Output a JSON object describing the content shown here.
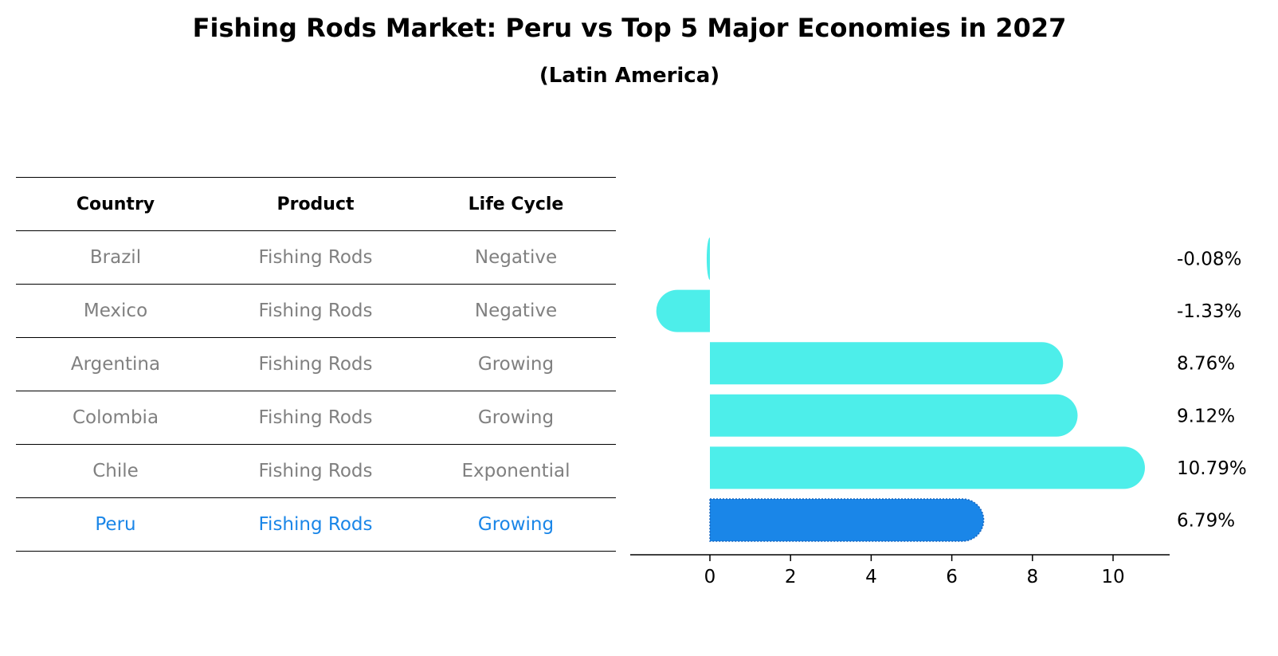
{
  "title": "Fishing Rods Market: Peru vs Top 5 Major Economies in 2027",
  "subtitle": "(Latin America)",
  "colors": {
    "bar": "#4DEEEA",
    "highlight": "#1A86E8",
    "muted": "#808080"
  },
  "table": {
    "headers": [
      "Country",
      "Product",
      "Life Cycle"
    ],
    "rows": [
      {
        "country": "Brazil",
        "product": "Fishing Rods",
        "life_cycle": "Negative",
        "highlight": false
      },
      {
        "country": "Mexico",
        "product": "Fishing Rods",
        "life_cycle": "Negative",
        "highlight": false
      },
      {
        "country": "Argentina",
        "product": "Fishing Rods",
        "life_cycle": "Growing",
        "highlight": false
      },
      {
        "country": "Colombia",
        "product": "Fishing Rods",
        "life_cycle": "Growing",
        "highlight": false
      },
      {
        "country": "Chile",
        "product": "Fishing Rods",
        "life_cycle": "Exponential",
        "highlight": false
      },
      {
        "country": "Peru",
        "product": "Fishing Rods",
        "life_cycle": "Growing",
        "highlight": true
      }
    ]
  },
  "chart_data": {
    "type": "bar",
    "orientation": "horizontal",
    "categories": [
      "Brazil",
      "Mexico",
      "Argentina",
      "Colombia",
      "Chile",
      "Peru"
    ],
    "values": [
      -0.08,
      -1.33,
      8.76,
      9.12,
      10.79,
      6.79
    ],
    "value_labels": [
      "-0.08%",
      "-1.33%",
      "8.76%",
      "9.12%",
      "10.79%",
      "6.79%"
    ],
    "highlight_index": 5,
    "xlim": [
      -2,
      11.5
    ],
    "xticks": [
      0,
      2,
      4,
      6,
      8,
      10
    ],
    "grid": false
  }
}
